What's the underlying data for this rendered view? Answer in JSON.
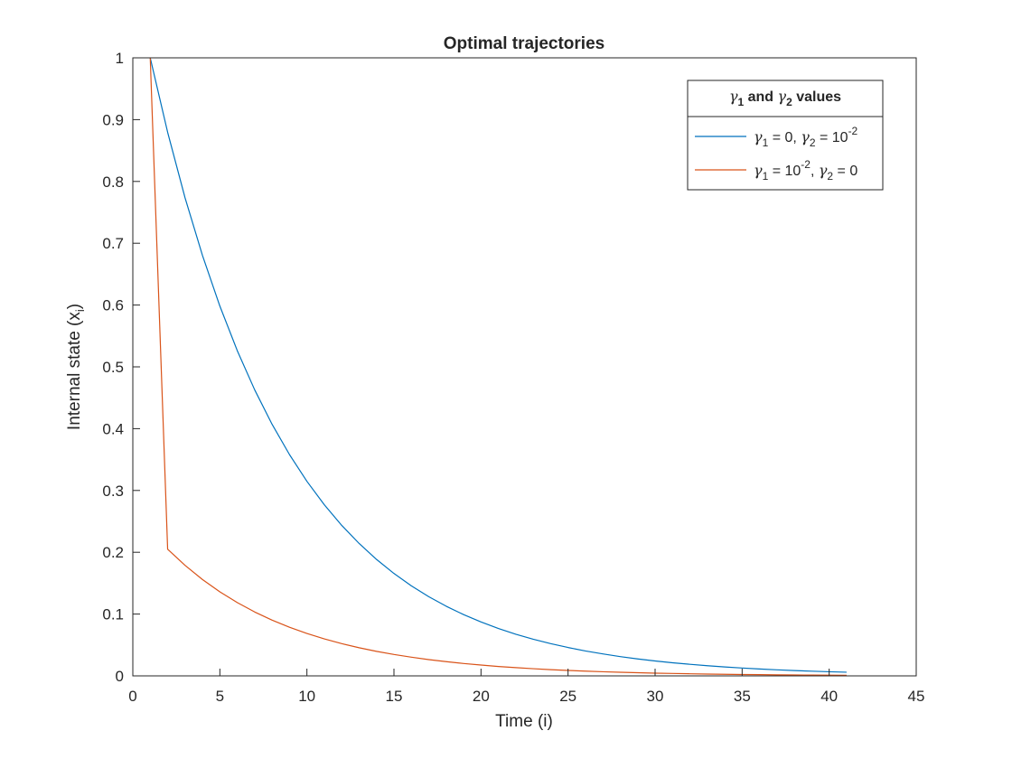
{
  "chart_data": {
    "type": "line",
    "title": "Optimal trajectories",
    "xlabel": "Time (i)",
    "ylabel": "Internal state (x",
    "ylabel_subscript": "i",
    "ylabel_suffix": ")",
    "xlim": [
      0,
      45
    ],
    "ylim": [
      0,
      1
    ],
    "xticks": [
      0,
      5,
      10,
      15,
      20,
      25,
      30,
      35,
      40,
      45
    ],
    "yticks": [
      0,
      0.1,
      0.2,
      0.3,
      0.4,
      0.5,
      0.6,
      0.7,
      0.8,
      0.9,
      1
    ],
    "grid": false,
    "legend": {
      "placement": "top-right",
      "title_parts": {
        "g1": "γ",
        "s1": "1",
        "mid": " and ",
        "g2": "γ",
        "s2": "2",
        "end": " values"
      }
    },
    "series": [
      {
        "name": "γ1 = 0, γ2 = 10^-2",
        "label_parts": {
          "g1": "γ",
          "s1": "1",
          "a": " = 0, ",
          "g2": "γ",
          "s2": "2",
          "b": " = 10",
          "sup": "-2",
          "c": ""
        },
        "color": "#0072BD",
        "x": [
          1,
          2,
          3,
          4,
          5,
          6,
          7,
          8,
          9,
          10,
          11,
          12,
          13,
          14,
          15,
          16,
          17,
          18,
          19,
          20,
          21,
          22,
          23,
          24,
          25,
          26,
          27,
          28,
          29,
          30,
          31,
          32,
          33,
          34,
          35,
          36,
          37,
          38,
          39,
          40,
          41
        ],
        "y": [
          1,
          0.8795,
          0.7735,
          0.6803,
          0.5983,
          0.5262,
          0.4628,
          0.407,
          0.358,
          0.3148,
          0.2769,
          0.2435,
          0.2142,
          0.1884,
          0.1657,
          0.1457,
          0.1281,
          0.1127,
          0.0991,
          0.0872,
          0.0767,
          0.0674,
          0.0593,
          0.0522,
          0.0459,
          0.0403,
          0.0355,
          0.0312,
          0.0274,
          0.0241,
          0.0212,
          0.0187,
          0.0164,
          0.0144,
          0.0127,
          0.0112,
          0.0098,
          0.0086,
          0.0076,
          0.0067,
          0.0059
        ]
      },
      {
        "name": "γ1 = 10^-2, γ2 = 0",
        "label_parts": {
          "g1": "γ",
          "s1": "1",
          "a": " = 10",
          "sup": "-2",
          "b": ", ",
          "g2": "γ",
          "s2": "2",
          "c": " = 0"
        },
        "color": "#D95319",
        "x": [
          1,
          2,
          3,
          4,
          5,
          6,
          7,
          8,
          9,
          10,
          11,
          12,
          13,
          14,
          15,
          16,
          17,
          18,
          19,
          20,
          21,
          22,
          23,
          24,
          25,
          26,
          27,
          28,
          29,
          30,
          31,
          32,
          33,
          34,
          35,
          36,
          37,
          38,
          39,
          40,
          41
        ],
        "y": [
          1,
          0.205,
          0.1788,
          0.1559,
          0.136,
          0.1186,
          0.1034,
          0.0902,
          0.0786,
          0.0686,
          0.0598,
          0.0522,
          0.0455,
          0.0397,
          0.0346,
          0.0302,
          0.0263,
          0.023,
          0.02,
          0.0175,
          0.0152,
          0.0133,
          0.0116,
          0.0101,
          0.0088,
          0.0077,
          0.0067,
          0.0058,
          0.0051,
          0.0044,
          0.0039,
          0.0034,
          0.0029,
          0.0026,
          0.0022,
          0.002,
          0.0017,
          0.0015,
          0.0013,
          0.0011,
          0.001
        ]
      }
    ]
  }
}
